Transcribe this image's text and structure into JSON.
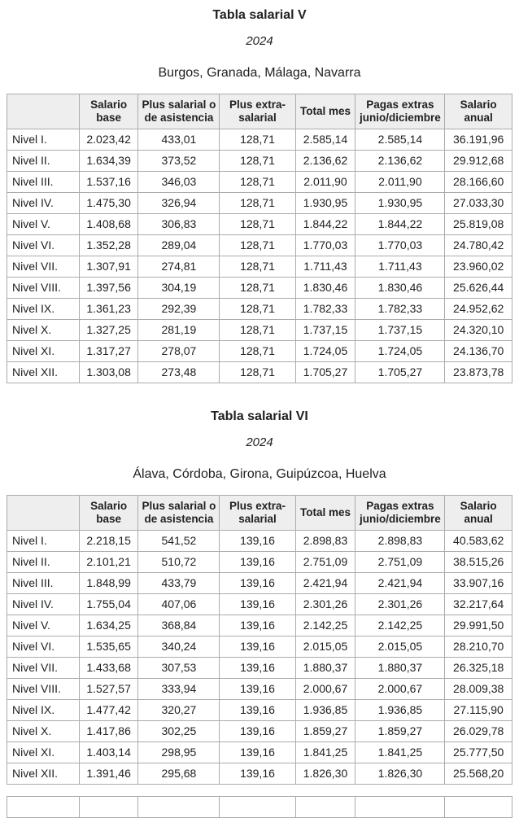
{
  "page": {
    "background_color": "#ffffff",
    "text_color": "#202122",
    "table_border_color": "#ababab",
    "header_bg_color": "#eeeeee"
  },
  "sections": [
    {
      "title": "Tabla salarial V",
      "year": "2024",
      "provinces": "Burgos, Granada, Málaga, Navarra",
      "table": {
        "headers": [
          "",
          "Salario base",
          "Plus salarial o de asistencia",
          "Plus extra-salarial",
          "Total mes",
          "Pagas extras junio/diciembre",
          "Salario anual"
        ],
        "rows": [
          [
            "Nivel I.",
            "2.023,42",
            "433,01",
            "128,71",
            "2.585,14",
            "2.585,14",
            "36.191,96"
          ],
          [
            "Nivel II.",
            "1.634,39",
            "373,52",
            "128,71",
            "2.136,62",
            "2.136,62",
            "29.912,68"
          ],
          [
            "Nivel III.",
            "1.537,16",
            "346,03",
            "128,71",
            "2.011,90",
            "2.011,90",
            "28.166,60"
          ],
          [
            "Nivel IV.",
            "1.475,30",
            "326,94",
            "128,71",
            "1.930,95",
            "1.930,95",
            "27.033,30"
          ],
          [
            "Nivel V.",
            "1.408,68",
            "306,83",
            "128,71",
            "1.844,22",
            "1.844,22",
            "25.819,08"
          ],
          [
            "Nivel VI.",
            "1.352,28",
            "289,04",
            "128,71",
            "1.770,03",
            "1.770,03",
            "24.780,42"
          ],
          [
            "Nivel VII.",
            "1.307,91",
            "274,81",
            "128,71",
            "1.711,43",
            "1.711,43",
            "23.960,02"
          ],
          [
            "Nivel VIII.",
            "1.397,56",
            "304,19",
            "128,71",
            "1.830,46",
            "1.830,46",
            "25.626,44"
          ],
          [
            "Nivel IX.",
            "1.361,23",
            "292,39",
            "128,71",
            "1.782,33",
            "1.782,33",
            "24.952,62"
          ],
          [
            "Nivel X.",
            "1.327,25",
            "281,19",
            "128,71",
            "1.737,15",
            "1.737,15",
            "24.320,10"
          ],
          [
            "Nivel XI.",
            "1.317,27",
            "278,07",
            "128,71",
            "1.724,05",
            "1.724,05",
            "24.136,70"
          ],
          [
            "Nivel XII.",
            "1.303,08",
            "273,48",
            "128,71",
            "1.705,27",
            "1.705,27",
            "23.873,78"
          ]
        ]
      }
    },
    {
      "title": "Tabla salarial VI",
      "year": "2024",
      "provinces": "Álava, Córdoba, Girona, Guipúzcoa, Huelva",
      "table": {
        "headers": [
          "",
          "Salario base",
          "Plus salarial o de asistencia",
          "Plus extra-salarial",
          "Total mes",
          "Pagas extras junio/diciembre",
          "Salario anual"
        ],
        "rows": [
          [
            "Nivel I.",
            "2.218,15",
            "541,52",
            "139,16",
            "2.898,83",
            "2.898,83",
            "40.583,62"
          ],
          [
            "Nivel II.",
            "2.101,21",
            "510,72",
            "139,16",
            "2.751,09",
            "2.751,09",
            "38.515,26"
          ],
          [
            "Nivel III.",
            "1.848,99",
            "433,79",
            "139,16",
            "2.421,94",
            "2.421,94",
            "33.907,16"
          ],
          [
            "Nivel IV.",
            "1.755,04",
            "407,06",
            "139,16",
            "2.301,26",
            "2.301,26",
            "32.217,64"
          ],
          [
            "Nivel V.",
            "1.634,25",
            "368,84",
            "139,16",
            "2.142,25",
            "2.142,25",
            "29.991,50"
          ],
          [
            "Nivel VI.",
            "1.535,65",
            "340,24",
            "139,16",
            "2.015,05",
            "2.015,05",
            "28.210,70"
          ],
          [
            "Nivel VII.",
            "1.433,68",
            "307,53",
            "139,16",
            "1.880,37",
            "1.880,37",
            "26.325,18"
          ],
          [
            "Nivel VIII.",
            "1.527,57",
            "333,94",
            "139,16",
            "2.000,67",
            "2.000,67",
            "28.009,38"
          ],
          [
            "Nivel IX.",
            "1.477,42",
            "320,27",
            "139,16",
            "1.936,85",
            "1.936,85",
            "27.115,90"
          ],
          [
            "Nivel X.",
            "1.417,86",
            "302,25",
            "139,16",
            "1.859,27",
            "1.859,27",
            "26.029,78"
          ],
          [
            "Nivel XI.",
            "1.403,14",
            "298,95",
            "139,16",
            "1.841,25",
            "1.841,25",
            "25.777,50"
          ],
          [
            "Nivel XII.",
            "1.391,46",
            "295,68",
            "139,16",
            "1.826,30",
            "1.826,30",
            "25.568,20"
          ]
        ]
      }
    }
  ],
  "partial_next_table": {
    "columns": 7,
    "note_visible_sliver": true
  }
}
